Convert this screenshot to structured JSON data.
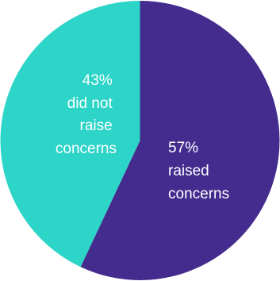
{
  "chart_data": {
    "type": "pie",
    "slices": [
      {
        "label_lines": [
          "57%",
          "raised",
          "concerns"
        ],
        "value": 57,
        "color": "#432c8e"
      },
      {
        "label_lines": [
          "43%",
          "did not",
          "raise",
          "concerns"
        ],
        "value": 43,
        "color": "#2dd4c8"
      }
    ],
    "start": "top",
    "direction": "clockwise",
    "legend": "none"
  }
}
